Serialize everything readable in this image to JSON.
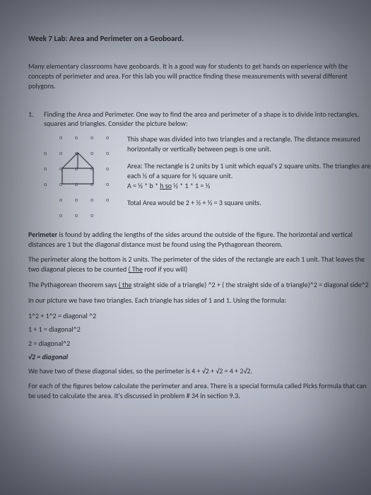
{
  "title": "Week 7 Lab: Area and Perimeter on a Geoboard.",
  "intro": "Many elementary classrooms have geoboards. It is a good way for students to get hands on experience with the concepts of perimeter and area. For this lab you will practice finding these measurements with several different polygons.",
  "item1": {
    "num": "1.",
    "lead": "Finding the Area and Perimeter. One way to find the area and perimeter of a shape is to divide into rectangles, squares and triangles. Consider the picture below:"
  },
  "fig": {
    "p1": "This shape was divided into two triangles and a rectangle. The distance measured horizontally or vertically between pegs is one unit.",
    "p2a": "Area: The rectangle is 2 units by 1 unit which equal's 2 square units. The triangles are each ½ of a square for ½ square unit.",
    "p2b": "A = ½ * b * h  so ½ * 1 * 1  = ½",
    "p3": "Total Area would be 2 + ½ + ½ = 3 square units."
  },
  "para_perim1a": "Perimeter",
  "para_perim1b": " is found by adding the lengths of the sides around the outside of the figure. The horizontal and vertical distances are 1 but the diagonal distance must be found using the Pythagorean theorem.",
  "para_perim2": "The perimeter along the bottom is 2 units. The perimeter of the sides of the rectangle are each 1 unit. That leaves the two diagonal pieces to be counted ( The roof if you will)",
  "para_pyth": "The Pythagorean theorem says ( the straight side of a triangle) ^2 + ( the straight side of a triangle)^2 = diagonal side^2",
  "para_ourpic": "In our picture we have two triangles. Each triangle has sides of 1 and 1. Using the formula:",
  "eq1": "1^2 + 1^2 = diagonal ^2",
  "eq2": "1 + 1 = diagonal^2",
  "eq3": "2 = diagonal^2",
  "eq4": "√2 = diagonal",
  "para_two": "We have two of these diagonal sides, so the perimeter is 4 + √2 + √2 = 4 + 2√2.",
  "para_end": "For each of the figures below calculate the perimeter and area. There is a special formula called Picks formula that can be used to calculate the area. It's discussed in problem # 34 in section 9.3.",
  "geoboard": {
    "cols": 5,
    "rows": 6,
    "cell": 22,
    "peg_glyph": "o",
    "shape": {
      "stroke": "#3a3c45",
      "stroke_width": 1.2,
      "roof_apex": [
        2,
        1
      ],
      "rect_tl": [
        1,
        2
      ],
      "rect_br": [
        3,
        3
      ]
    }
  },
  "style": {
    "underline_words": [
      "so",
      "The",
      "the"
    ]
  }
}
